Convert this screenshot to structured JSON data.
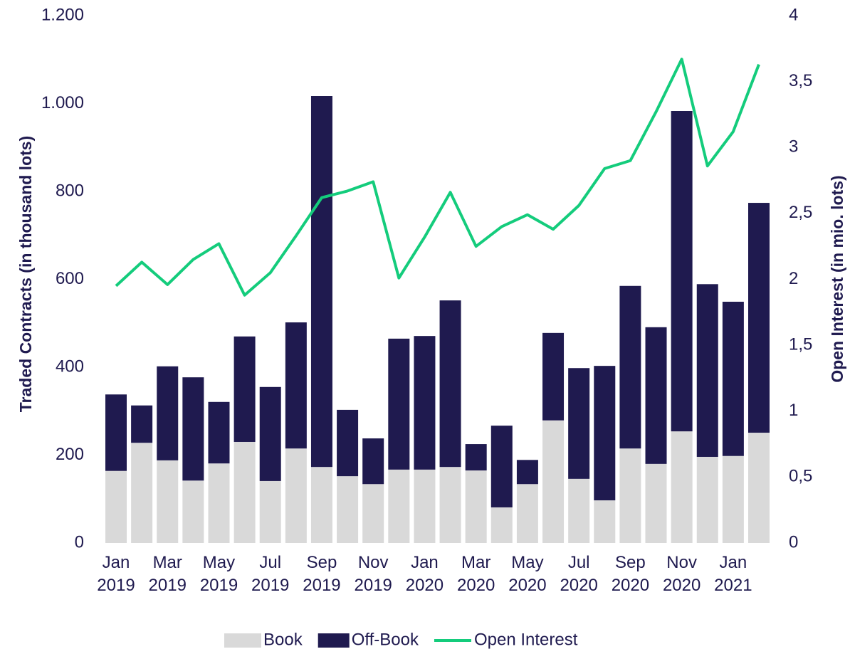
{
  "chart_data": {
    "type": "bar",
    "stacked": true,
    "categories": [
      "Jan 2019",
      null,
      "Mar 2019",
      null,
      "May 2019",
      null,
      "Jul 2019",
      null,
      "Sep 2019",
      null,
      "Nov 2019",
      null,
      "Jan 2020",
      null,
      "Mar 2020",
      null,
      "May 2020",
      null,
      "Jul 2020",
      null,
      "Sep 2020",
      null,
      "Nov 2020",
      null,
      "Jan 2021",
      null
    ],
    "y_label": "Traded Contracts (in thousand lots)",
    "y2_label": "Open Interest (in mio. lots)",
    "ylim": [
      0,
      1200
    ],
    "yticks": [
      0,
      200,
      400,
      600,
      800,
      {
        "value": 1000,
        "label": "1.000"
      },
      {
        "value": 1200,
        "label": "1.200"
      }
    ],
    "y2lim": [
      0,
      4
    ],
    "y2ticks": [
      0,
      {
        "value": 0.5,
        "label": "0,5"
      },
      1,
      {
        "value": 1.5,
        "label": "1,5"
      },
      2,
      {
        "value": 2.5,
        "label": "2,5"
      },
      3,
      {
        "value": 3.5,
        "label": "3,5"
      },
      4
    ],
    "legend": "bottom",
    "series": [
      {
        "name": "Book",
        "type": "bar",
        "color": "#d9d9d9",
        "values": [
          164,
          228,
          188,
          142,
          181,
          230,
          141,
          215,
          173,
          152,
          134,
          167,
          167,
          173,
          165,
          81,
          134,
          279,
          146,
          97,
          215,
          180,
          254,
          196,
          198,
          251
        ]
      },
      {
        "name": "Off-Book",
        "type": "bar",
        "color": "#1f1a4f",
        "values": [
          174,
          85,
          214,
          235,
          140,
          240,
          214,
          287,
          844,
          151,
          104,
          298,
          304,
          379,
          60,
          186,
          55,
          199,
          252,
          306,
          370,
          311,
          729,
          393,
          351,
          523
        ]
      },
      {
        "name": "Open Interest",
        "type": "line",
        "axis": "y2",
        "color": "#14cc7c",
        "values": [
          1.95,
          2.13,
          1.96,
          2.15,
          2.27,
          1.88,
          2.05,
          2.33,
          2.62,
          2.67,
          2.74,
          2.01,
          2.32,
          2.66,
          2.25,
          2.4,
          2.49,
          2.38,
          2.56,
          2.84,
          2.9,
          3.27,
          3.67,
          2.86,
          3.12,
          3.63
        ]
      }
    ]
  }
}
